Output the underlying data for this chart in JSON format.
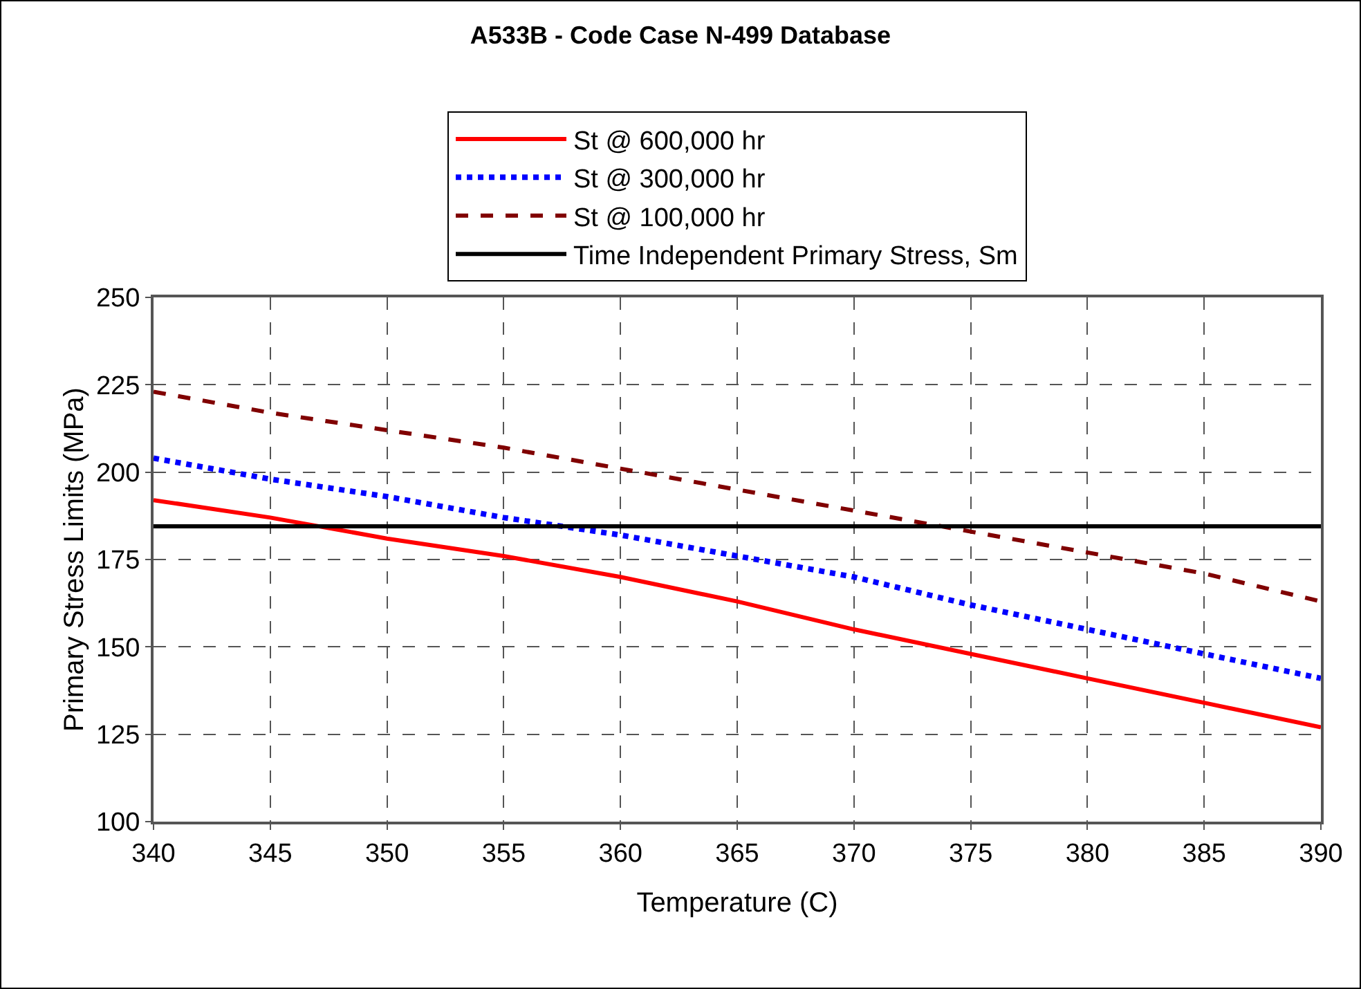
{
  "chart_data": {
    "type": "line",
    "title": "A533B - Code Case N-499 Database",
    "xlabel": "Temperature (C)",
    "ylabel": "Primary Stress Limits (MPa)",
    "x": [
      340,
      345,
      350,
      355,
      360,
      365,
      370,
      375,
      380,
      385,
      390
    ],
    "series": [
      {
        "name": "St @ 600,000 hr",
        "color": "#ff0000",
        "line_style": "solid",
        "values": [
          192,
          187,
          181,
          176,
          170,
          163,
          155,
          148,
          141,
          134,
          127
        ]
      },
      {
        "name": "St @ 300,000 hr",
        "color": "#0000ff",
        "line_style": "dotted",
        "values": [
          204,
          198,
          193,
          187,
          182,
          176,
          170,
          162,
          155,
          148,
          141
        ]
      },
      {
        "name": "St @ 100,000 hr",
        "color": "#800000",
        "line_style": "dashed",
        "values": [
          223,
          217,
          212,
          207,
          201,
          195,
          189,
          183,
          177,
          171,
          163
        ]
      },
      {
        "name": "Time Independent Primary Stress, Sm",
        "color": "#000000",
        "line_style": "solid",
        "x": [
          340,
          390
        ],
        "values": [
          184.5,
          184.5
        ]
      }
    ],
    "xlim": [
      340,
      390
    ],
    "xticks": [
      340,
      345,
      350,
      355,
      360,
      365,
      370,
      375,
      380,
      385,
      390
    ],
    "ylim": [
      100,
      250
    ],
    "yticks": [
      100,
      125,
      150,
      175,
      200,
      225,
      250
    ],
    "grid": true,
    "legend": "top",
    "marker": "none"
  }
}
